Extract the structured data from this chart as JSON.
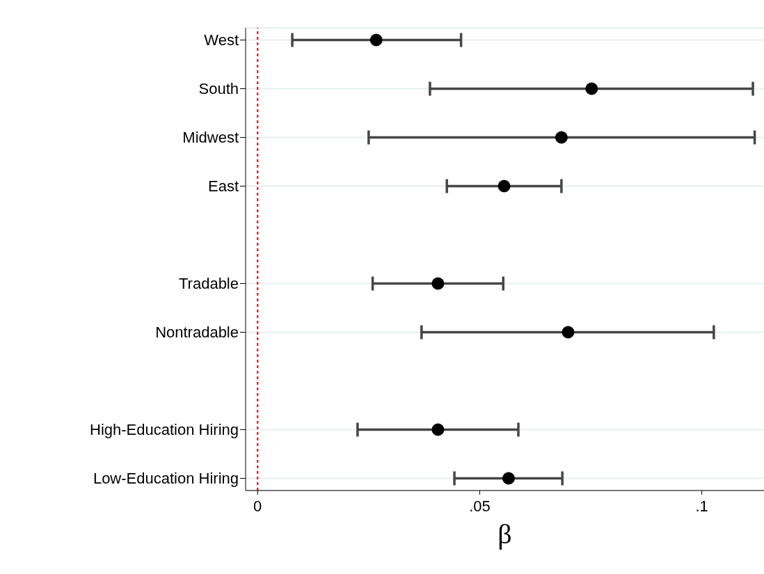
{
  "chart_data": {
    "type": "scatter",
    "orientation": "horizontal",
    "xlabel": "β",
    "categories": [
      "West",
      "South",
      "Midwest",
      "East",
      null,
      "Tradable",
      "Nontradable",
      null,
      "High-Education Hiring",
      "Low-Education Hiring"
    ],
    "values": [
      0.0267,
      0.0752,
      0.0684,
      0.0555,
      null,
      0.0406,
      0.0699,
      null,
      0.0406,
      0.0565
    ],
    "errors": [
      [
        0.0078,
        0.0458
      ],
      [
        0.0388,
        0.1115
      ],
      [
        0.025,
        0.1119
      ],
      [
        0.0426,
        0.0684
      ],
      null,
      [
        0.0259,
        0.0553
      ],
      [
        0.0369,
        0.1027
      ],
      null,
      [
        0.0225,
        0.0587
      ],
      [
        0.0443,
        0.0686
      ]
    ],
    "color": "#000000",
    "marker": "circle",
    "grid": "y",
    "xlim": [
      -0.0027,
      0.114
    ],
    "xticks": [
      0,
      {
        "value": 0.05,
        "label": ".05"
      },
      {
        "value": 0.1,
        "label": ".1"
      }
    ],
    "ref_lines": [
      {
        "axis": "x",
        "value": 0,
        "color": "#ff0000",
        "line_style": "dashed"
      }
    ]
  }
}
